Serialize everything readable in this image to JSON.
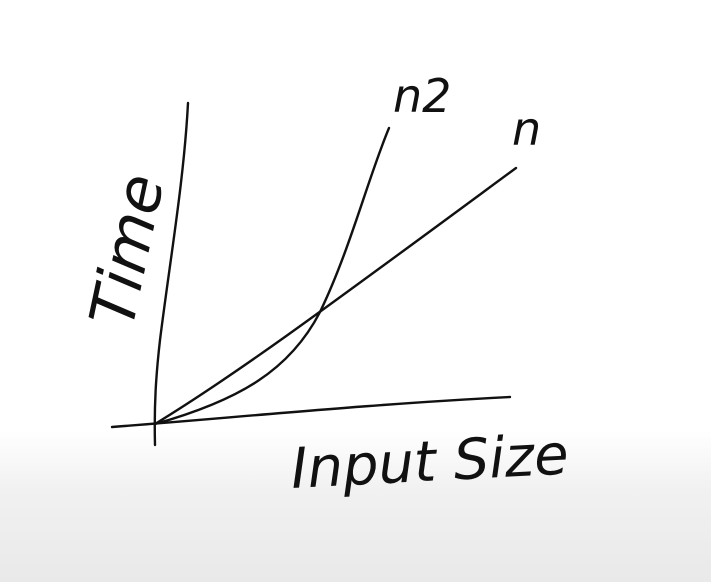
{
  "diagram": {
    "y_axis_label": "Time",
    "x_axis_label": "Input Size",
    "curves": [
      {
        "label": "n2",
        "kind": "quadratic"
      },
      {
        "label": "n",
        "kind": "linear"
      }
    ]
  }
}
